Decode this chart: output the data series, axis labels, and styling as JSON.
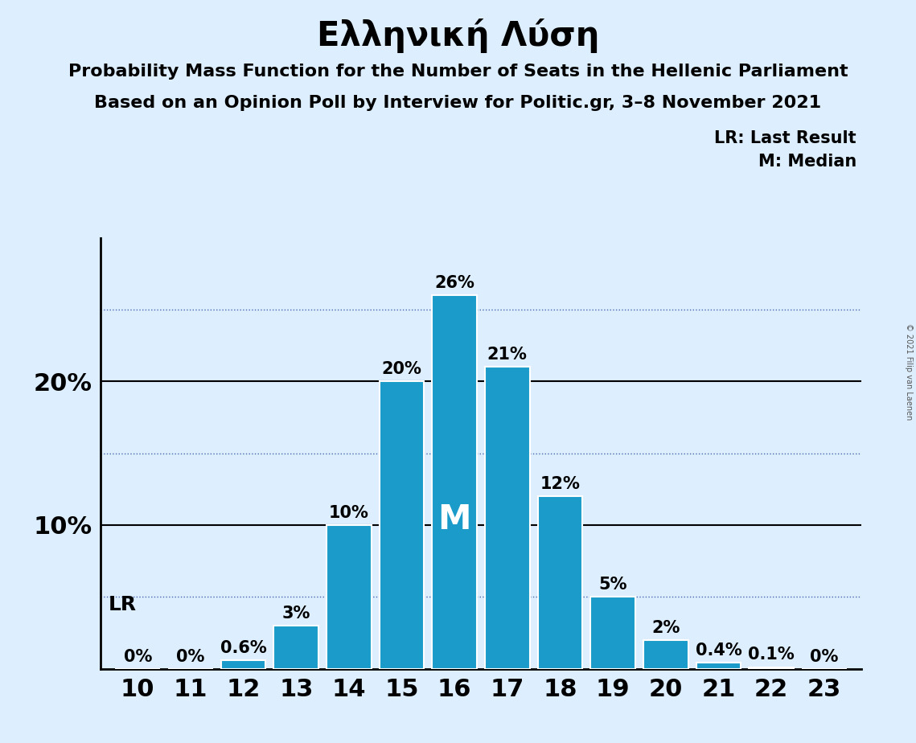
{
  "title": "Ελληνική Λύση",
  "subtitle1": "Probability Mass Function for the Number of Seats in the Hellenic Parliament",
  "subtitle2": "Based on an Opinion Poll by Interview for Politic.gr, 3–8 November 2021",
  "copyright": "© 2021 Filip van Laenen",
  "categories": [
    10,
    11,
    12,
    13,
    14,
    15,
    16,
    17,
    18,
    19,
    20,
    21,
    22,
    23
  ],
  "values": [
    0.0,
    0.0,
    0.6,
    3.0,
    10.0,
    20.0,
    26.0,
    21.0,
    12.0,
    5.0,
    2.0,
    0.4,
    0.1,
    0.0
  ],
  "labels": [
    "0%",
    "0%",
    "0.6%",
    "3%",
    "10%",
    "20%",
    "26%",
    "21%",
    "12%",
    "5%",
    "2%",
    "0.4%",
    "0.1%",
    "0%"
  ],
  "bar_color": "#1a9bc9",
  "background_color": "#ddeeff",
  "text_color": "#000000",
  "bar_label_color": "#000000",
  "m_label_color": "#ffffff",
  "median_seat": 16,
  "lr_seat": 10,
  "solid_lines": [
    10.0,
    20.0
  ],
  "dotted_lines": [
    5.0,
    15.0,
    25.0
  ],
  "lr_annotation": "LR: Last Result",
  "m_annotation": "M: Median",
  "lr_label": "LR",
  "m_label": "M",
  "title_fontsize": 30,
  "subtitle_fontsize": 16,
  "bar_label_fontsize": 15,
  "m_fontsize": 30,
  "legend_fontsize": 15,
  "tick_fontsize": 22,
  "ytick_labels": [
    "",
    "10%",
    "20%"
  ],
  "ylim": [
    0,
    30
  ]
}
